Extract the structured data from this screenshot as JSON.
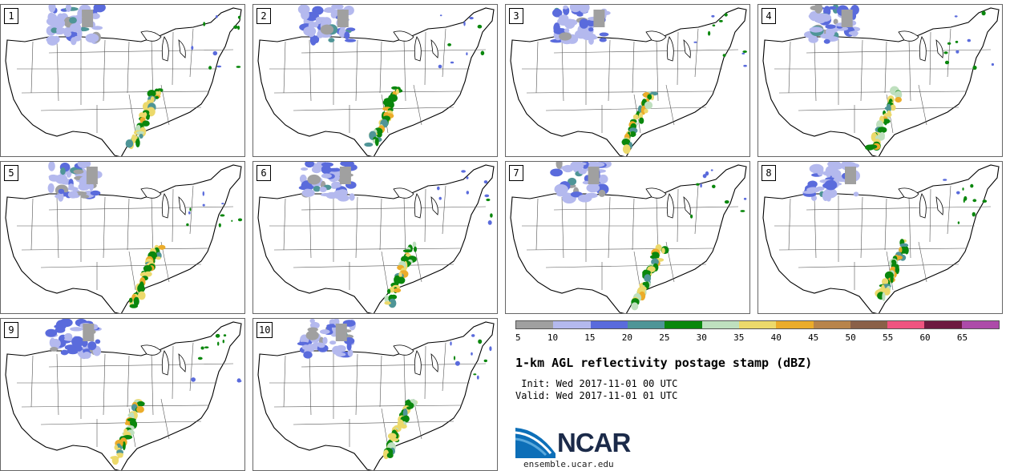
{
  "panels": [
    {
      "label": "1"
    },
    {
      "label": "2"
    },
    {
      "label": "3"
    },
    {
      "label": "4"
    },
    {
      "label": "5"
    },
    {
      "label": "6"
    },
    {
      "label": "7"
    },
    {
      "label": "8"
    },
    {
      "label": "9"
    },
    {
      "label": "10"
    }
  ],
  "legend": {
    "colors": [
      "#a0a0a0",
      "#b4b9ee",
      "#5a6bdc",
      "#4f9597",
      "#0a870d",
      "#bfe0bf",
      "#ecd96b",
      "#ebac2a",
      "#b8844a",
      "#8a6048",
      "#ef5480",
      "#6d1a40",
      "#ad4ba9"
    ],
    "ticks": [
      "5",
      "10",
      "15",
      "20",
      "25",
      "30",
      "35",
      "40",
      "45",
      "50",
      "55",
      "60",
      "65"
    ]
  },
  "title": "1-km AGL reflectivity postage stamp (dBZ)",
  "init_line": " Init: Wed 2017-11-01 00 UTC",
  "valid_line": "Valid: Wed 2017-11-01 01 UTC",
  "logo": {
    "name": "NCAR",
    "url": "ensemble.ucar.edu"
  }
}
